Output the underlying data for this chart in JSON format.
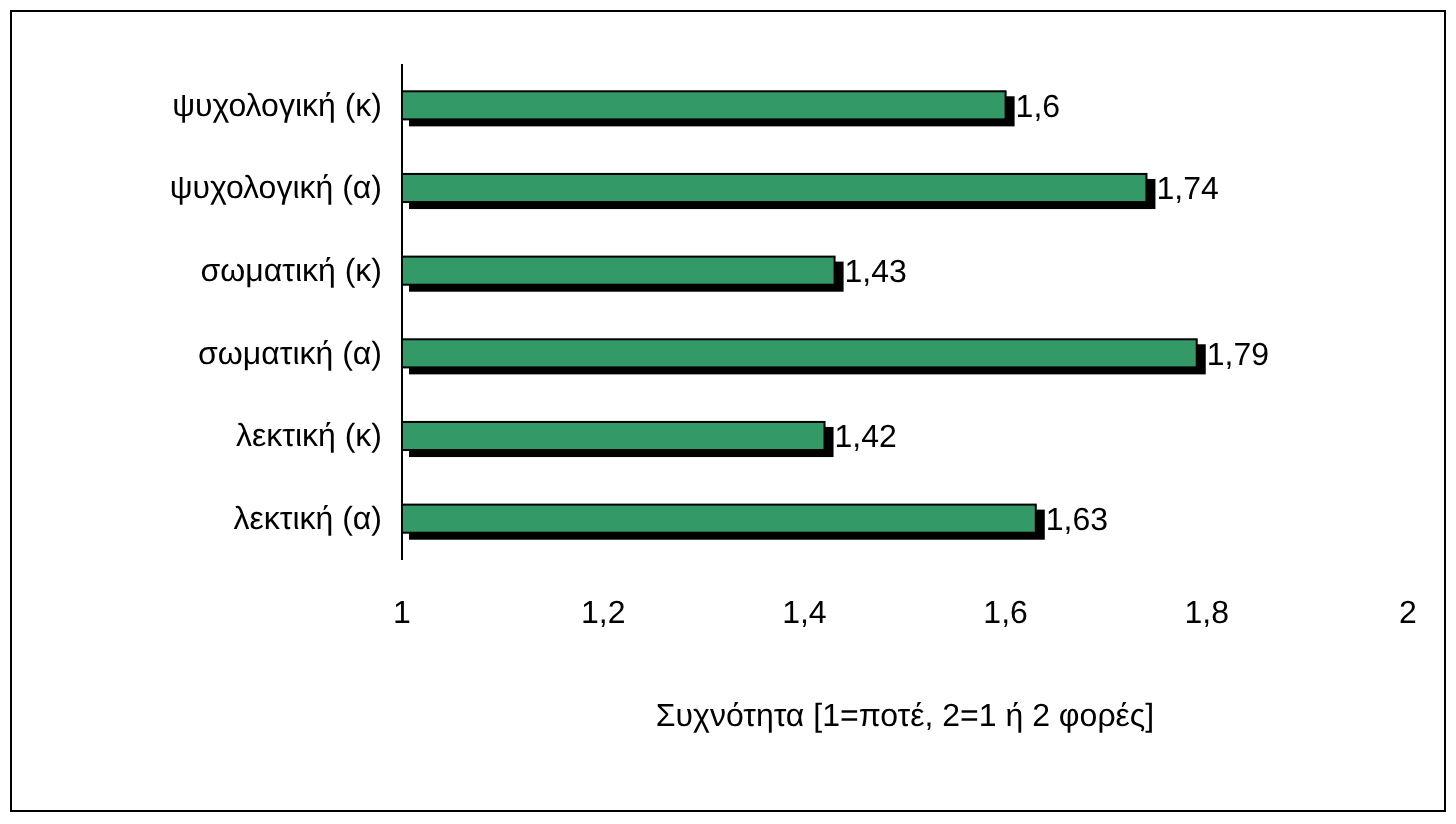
{
  "chart_data": {
    "type": "bar",
    "orientation": "horizontal",
    "categories": [
      "ψυχολογική (κ)",
      "ψυχολογική (α)",
      "σωματική (κ)",
      "σωματική (α)",
      "λεκτική (κ)",
      "λεκτική (α)"
    ],
    "values": [
      1.6,
      1.74,
      1.43,
      1.79,
      1.42,
      1.63
    ],
    "value_labels": [
      "1,6",
      "1,74",
      "1,43",
      "1,79",
      "1,42",
      "1,63"
    ],
    "color": "#339966",
    "xlim": [
      1,
      2
    ],
    "xticks": [
      1,
      {
        "value": 1.2,
        "label": "1,2"
      },
      {
        "value": 1.4,
        "label": "1,4"
      },
      {
        "value": 1.6,
        "label": "1,6"
      },
      {
        "value": 1.8,
        "label": "1,8"
      },
      2
    ],
    "xlabel": "Συχνότητα [1=ποτέ, 2=1 ή 2 φορές]",
    "grid": false
  }
}
